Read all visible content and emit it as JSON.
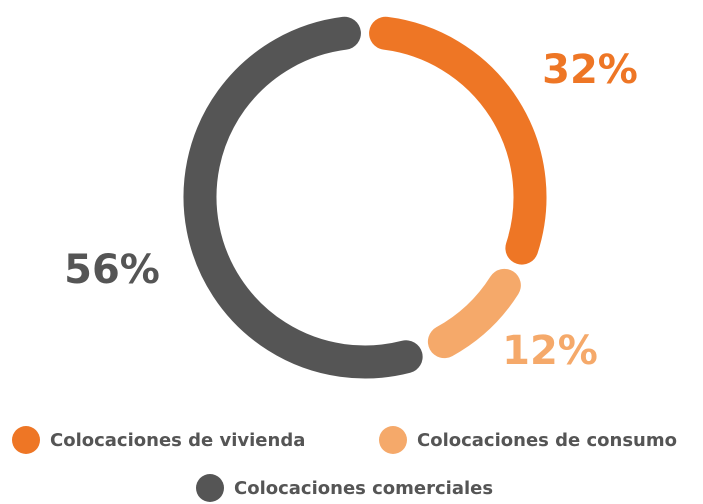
{
  "chart_data": {
    "type": "donut",
    "categories": [
      "Colocaciones de vivienda",
      "Colocaciones de consumo",
      "Colocaciones comerciales"
    ],
    "values": [
      32,
      12,
      56
    ],
    "value_labels": [
      "32%",
      "12%",
      "56%"
    ],
    "colors": [
      "#ee7625",
      "#f5a96a",
      "#555555"
    ],
    "legend": "bottom"
  }
}
